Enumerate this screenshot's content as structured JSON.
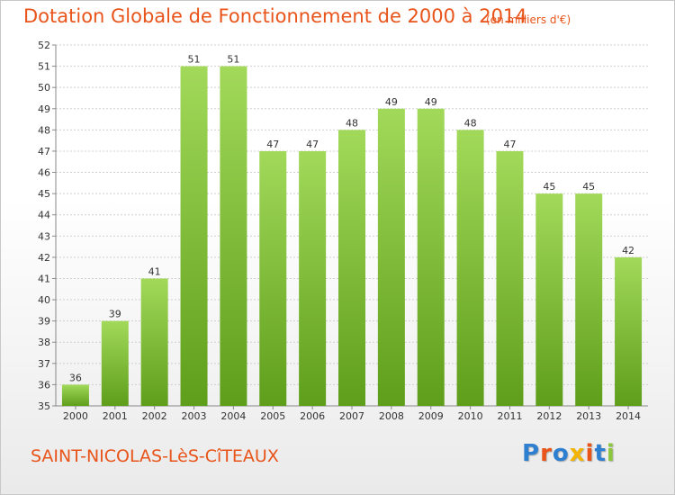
{
  "header": {
    "title": "Dotation Globale de Fonctionnement de 2000 à 2014",
    "subtitle": "(en milliers d'€)"
  },
  "footer": {
    "commune": "SAINT-NICOLAS-LèS-CîTEAUX",
    "logo_text": "Proxiti",
    "logo_colors": [
      "#2f7fd0",
      "#e8541a",
      "#2f7fd0",
      "#f2b400",
      "#e8541a",
      "#2f7fd0",
      "#8cc63f"
    ]
  },
  "colors": {
    "title": "#e8541a",
    "bar_top": "#a2d95a",
    "bar_bottom": "#5e9e1a",
    "grid": "#d0d0d0",
    "axis_text": "#333333"
  },
  "chart_data": {
    "type": "bar",
    "categories": [
      "2000",
      "2001",
      "2002",
      "2003",
      "2004",
      "2005",
      "2006",
      "2007",
      "2008",
      "2009",
      "2010",
      "2011",
      "2012",
      "2013",
      "2014"
    ],
    "values": [
      36,
      39,
      41,
      51,
      51,
      47,
      47,
      48,
      49,
      49,
      48,
      47,
      45,
      45,
      42
    ],
    "ylim": [
      35,
      52
    ],
    "yticks": [
      35,
      36,
      37,
      38,
      39,
      40,
      41,
      42,
      43,
      44,
      45,
      46,
      47,
      48,
      49,
      50,
      51,
      52
    ],
    "grid": true,
    "legend": "none",
    "data_labels": true
  }
}
